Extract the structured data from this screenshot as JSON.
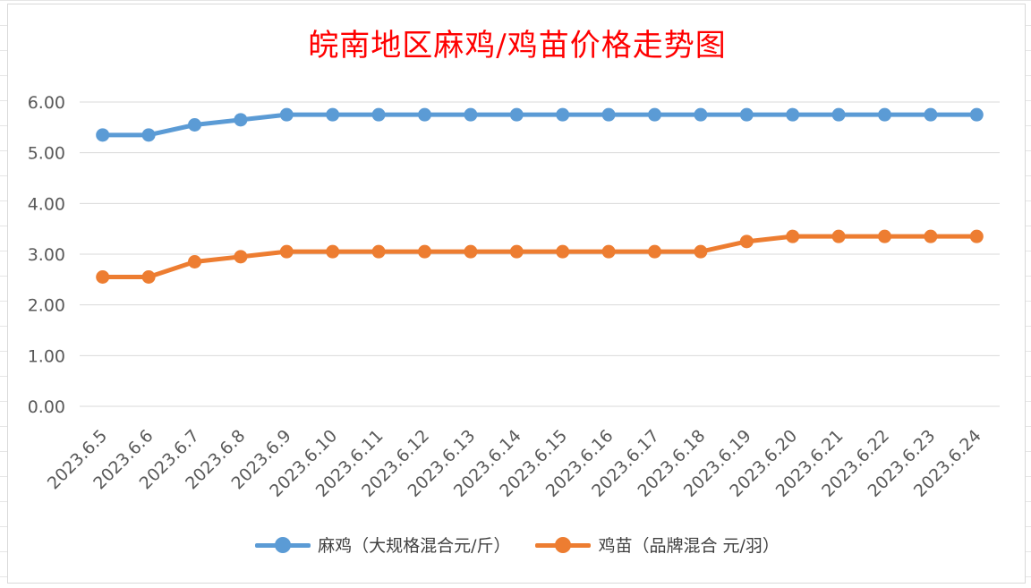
{
  "chart_data": {
    "type": "line",
    "title": "皖南地区麻鸡/鸡苗价格走势图",
    "categories": [
      "2023.6.5",
      "2023.6.6",
      "2023.6.7",
      "2023.6.8",
      "2023.6.9",
      "2023.6.10",
      "2023.6.11",
      "2023.6.12",
      "2023.6.13",
      "2023.6.14",
      "2023.6.15",
      "2023.6.16",
      "2023.6.17",
      "2023.6.18",
      "2023.6.19",
      "2023.6.20",
      "2023.6.21",
      "2023.6.22",
      "2023.6.23",
      "2023.6.24"
    ],
    "series": [
      {
        "name": "麻鸡（大规格混合元/斤）",
        "color": "#5b9bd5",
        "values": [
          5.35,
          5.35,
          5.55,
          5.65,
          5.75,
          5.75,
          5.75,
          5.75,
          5.75,
          5.75,
          5.75,
          5.75,
          5.75,
          5.75,
          5.75,
          5.75,
          5.75,
          5.75,
          5.75,
          5.75
        ]
      },
      {
        "name": "鸡苗（品牌混合 元/羽）",
        "color": "#ed7d31",
        "values": [
          2.55,
          2.55,
          2.85,
          2.95,
          3.05,
          3.05,
          3.05,
          3.05,
          3.05,
          3.05,
          3.05,
          3.05,
          3.05,
          3.05,
          3.25,
          3.35,
          3.35,
          3.35,
          3.35,
          3.35
        ]
      }
    ],
    "yticks": [
      "0.00",
      "1.00",
      "2.00",
      "3.00",
      "4.00",
      "5.00",
      "6.00"
    ],
    "ylim": [
      0,
      6
    ],
    "grid": true,
    "legend_position": "bottom",
    "title_color": "#ff0000"
  }
}
